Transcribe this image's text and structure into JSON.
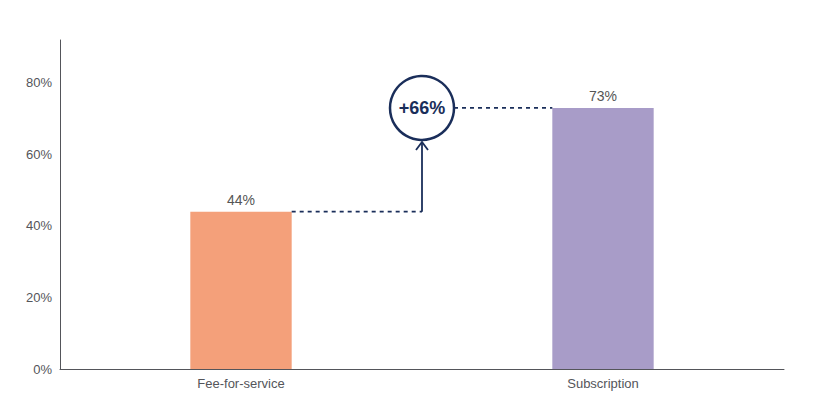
{
  "chart_data": {
    "type": "bar",
    "categories": [
      "Fee-for-service",
      "Subscription"
    ],
    "values": [
      0.44,
      0.73
    ],
    "value_labels": [
      "44%",
      "73%"
    ],
    "data_labels": true,
    "colors": [
      "#F4A07A",
      "#A89CC8"
    ],
    "ylim": [
      0,
      0.92
    ],
    "yticks": [
      {
        "value": 0.0,
        "label": "0%"
      },
      {
        "value": 0.2,
        "label": "20%"
      },
      {
        "value": 0.4,
        "label": "40%"
      },
      {
        "value": 0.6,
        "label": "60%"
      },
      {
        "value": 0.8,
        "label": "80%"
      }
    ],
    "grid": false,
    "annotations": [
      {
        "text": "+66%",
        "color": "#1a2e5a"
      }
    ]
  }
}
